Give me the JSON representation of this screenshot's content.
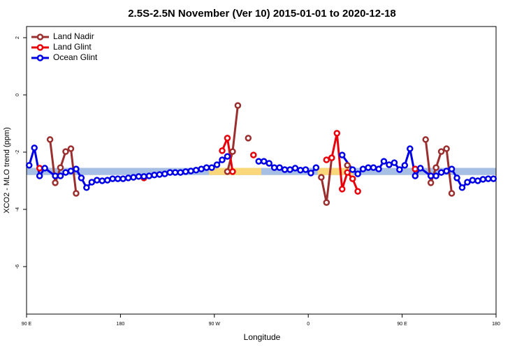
{
  "chart_data": {
    "type": "line",
    "title": "2.5S-2.5N November (Ver 10)   2015-01-01 to 2020-12-18",
    "xlabel": "Longitude",
    "ylabel": "XCO2 - MLO trend (ppm)",
    "xlim": [
      90,
      540
    ],
    "ylim": [
      -7.66,
      2.39
    ],
    "xticks": [
      {
        "value": 90,
        "label": "90 E"
      },
      180,
      {
        "value": 270,
        "label": "90 W"
      },
      {
        "value": 360,
        "label": "0"
      },
      {
        "value": 450,
        "label": "90 E"
      },
      {
        "value": 540,
        "label": "180"
      }
    ],
    "yticks": [
      -6,
      -4,
      -2,
      0,
      2
    ],
    "legend": "top-left",
    "ribbons": [
      {
        "color": "#a7bfe3",
        "x": [
          90,
          540
        ],
        "low": -2.8,
        "high": -2.55
      },
      {
        "color": "#fbd77c",
        "x": [
          265,
          315
        ],
        "low": -2.8,
        "high": -2.55
      },
      {
        "color": "#fbd77c",
        "x": [
          369,
          403
        ],
        "low": -2.8,
        "high": -2.55
      }
    ],
    "series": [
      {
        "name": "Land Nadir",
        "color": "#9b2f2f",
        "x": [
          112.5,
          117.5,
          122.5,
          127.5,
          132.5,
          137.5,
          null,
          282.5,
          287.5,
          292.5,
          null,
          302.5,
          null,
          372.5,
          377.5,
          382.5,
          null,
          397.5,
          null,
          472.5,
          477.5,
          482.5,
          487.5,
          492.5,
          497.5
        ],
        "values": [
          -1.56,
          -3.07,
          -2.54,
          -1.98,
          -1.88,
          -3.44,
          null,
          -2.68,
          -1.98,
          -0.37,
          null,
          -1.51,
          null,
          -2.88,
          -3.76,
          -2.2,
          null,
          -2.46,
          null,
          -1.56,
          -3.07,
          -2.54,
          -1.98,
          -1.88,
          -3.44
        ]
      },
      {
        "name": "Land Glint",
        "color": "#e8000b",
        "x": [
          102.5,
          null,
          202.5,
          null,
          277.5,
          282.5,
          287.5,
          null,
          307.5,
          null,
          377.5,
          382.5,
          387.5,
          392.5,
          397.5,
          402.5,
          407.5,
          null,
          462.5
        ],
        "values": [
          -2.56,
          null,
          -2.9,
          null,
          -1.95,
          -1.51,
          -2.68,
          null,
          -2.1,
          null,
          -2.27,
          -2.2,
          -1.34,
          -3.29,
          -2.71,
          -2.93,
          -3.37,
          null,
          -2.59
        ]
      },
      {
        "name": "Ocean Glint",
        "color": "#0000e6",
        "x": [
          92.5,
          97.5,
          102.5,
          107.5,
          117.5,
          122.5,
          127.5,
          132.5,
          137.5,
          142.5,
          147.5,
          152.5,
          157.5,
          162.5,
          167.5,
          172.5,
          177.5,
          182.5,
          187.5,
          192.5,
          197.5,
          202.5,
          207.5,
          212.5,
          217.5,
          222.5,
          227.5,
          232.5,
          237.5,
          242.5,
          247.5,
          252.5,
          257.5,
          262.5,
          267.5,
          272.5,
          277.5,
          282.5,
          null,
          312.5,
          317.5,
          322.5,
          327.5,
          332.5,
          337.5,
          342.5,
          347.5,
          352.5,
          357.5,
          362.5,
          367.5,
          null,
          392.5,
          402.5,
          407.5,
          412.5,
          417.5,
          422.5,
          427.5,
          432.5,
          437.5,
          442.5,
          447.5,
          452.5,
          457.5,
          462.5,
          467.5,
          477.5,
          482.5,
          487.5,
          492.5,
          497.5,
          502.5,
          507.5,
          512.5,
          517.5,
          522.5,
          527.5,
          532.5,
          537.5
        ],
        "values": [
          -2.46,
          -1.85,
          -2.83,
          -2.56,
          -2.83,
          -2.83,
          -2.71,
          -2.66,
          -2.59,
          -2.9,
          -3.24,
          -3.05,
          -2.98,
          -3.0,
          -2.98,
          -2.93,
          -2.93,
          -2.93,
          -2.9,
          -2.88,
          -2.85,
          -2.85,
          -2.83,
          -2.8,
          -2.78,
          -2.76,
          -2.71,
          -2.71,
          -2.71,
          -2.68,
          -2.66,
          -2.63,
          -2.59,
          -2.54,
          -2.54,
          -2.44,
          -2.27,
          -2.15,
          null,
          -2.32,
          -2.32,
          -2.39,
          -2.54,
          -2.54,
          -2.61,
          -2.61,
          -2.56,
          -2.63,
          -2.61,
          -2.73,
          -2.54,
          null,
          -2.1,
          -2.61,
          -2.76,
          -2.59,
          -2.54,
          -2.54,
          -2.59,
          -2.32,
          -2.44,
          -2.37,
          -2.61,
          -2.46,
          -1.88,
          -2.83,
          -2.56,
          -2.83,
          -2.83,
          -2.71,
          -2.66,
          -2.59,
          -2.9,
          -3.24,
          -3.05,
          -2.98,
          -3.0,
          -2.95,
          -2.93,
          -2.93
        ]
      }
    ]
  }
}
